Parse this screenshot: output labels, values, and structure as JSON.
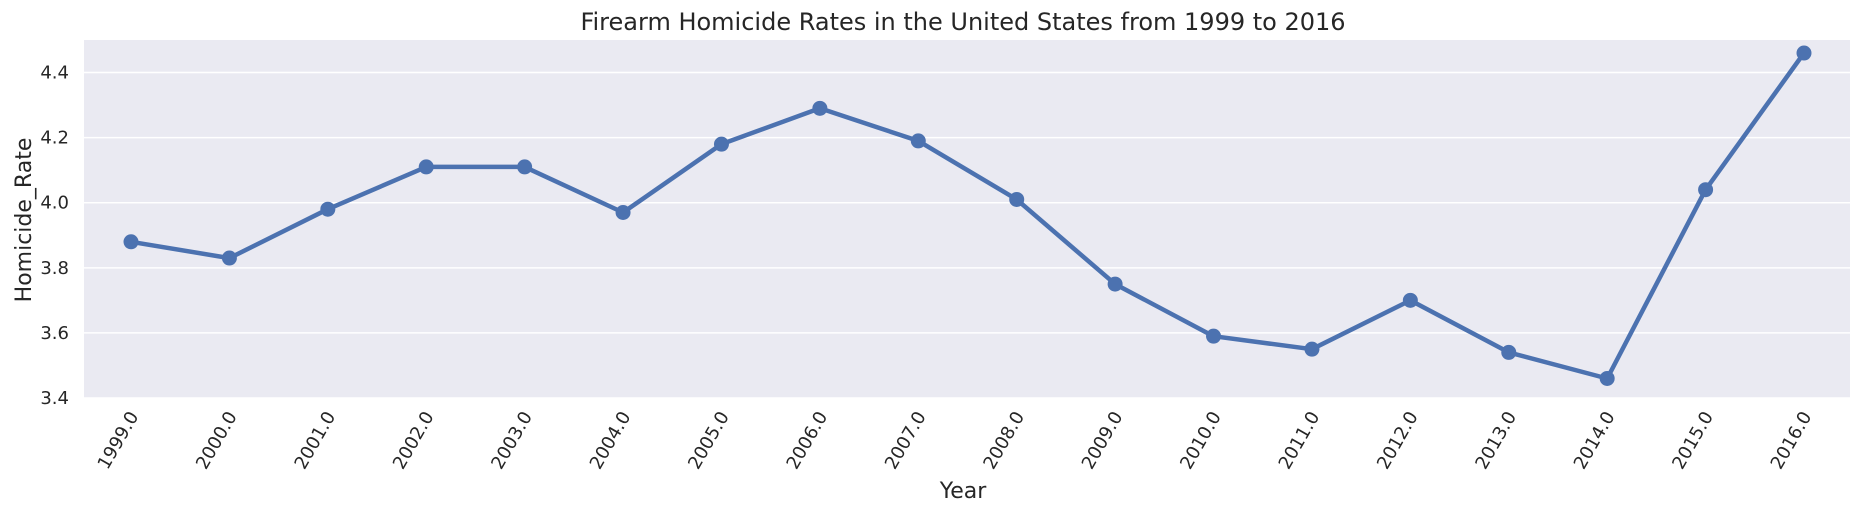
{
  "chart_data": {
    "type": "line",
    "title": "Firearm Homicide Rates in the United States from 1999 to 2016",
    "xlabel": "Year",
    "ylabel": "Homicide_Rate",
    "categories": [
      "1999.0",
      "2000.0",
      "2001.0",
      "2002.0",
      "2003.0",
      "2004.0",
      "2005.0",
      "2006.0",
      "2007.0",
      "2008.0",
      "2009.0",
      "2010.0",
      "2011.0",
      "2012.0",
      "2013.0",
      "2014.0",
      "2015.0",
      "2016.0"
    ],
    "values": [
      3.88,
      3.83,
      3.98,
      4.11,
      4.11,
      3.97,
      4.18,
      4.29,
      4.19,
      4.01,
      3.75,
      3.59,
      3.55,
      3.7,
      3.54,
      3.46,
      4.04,
      4.46
    ],
    "yticks": [
      "3.4",
      "3.6",
      "3.8",
      "4.0",
      "4.2",
      "4.4"
    ],
    "ylim": [
      3.4,
      4.5
    ],
    "grid": true,
    "colors": {
      "background": "#eaeaf2",
      "grid": "#ffffff",
      "line": "#4c72b0"
    }
  }
}
